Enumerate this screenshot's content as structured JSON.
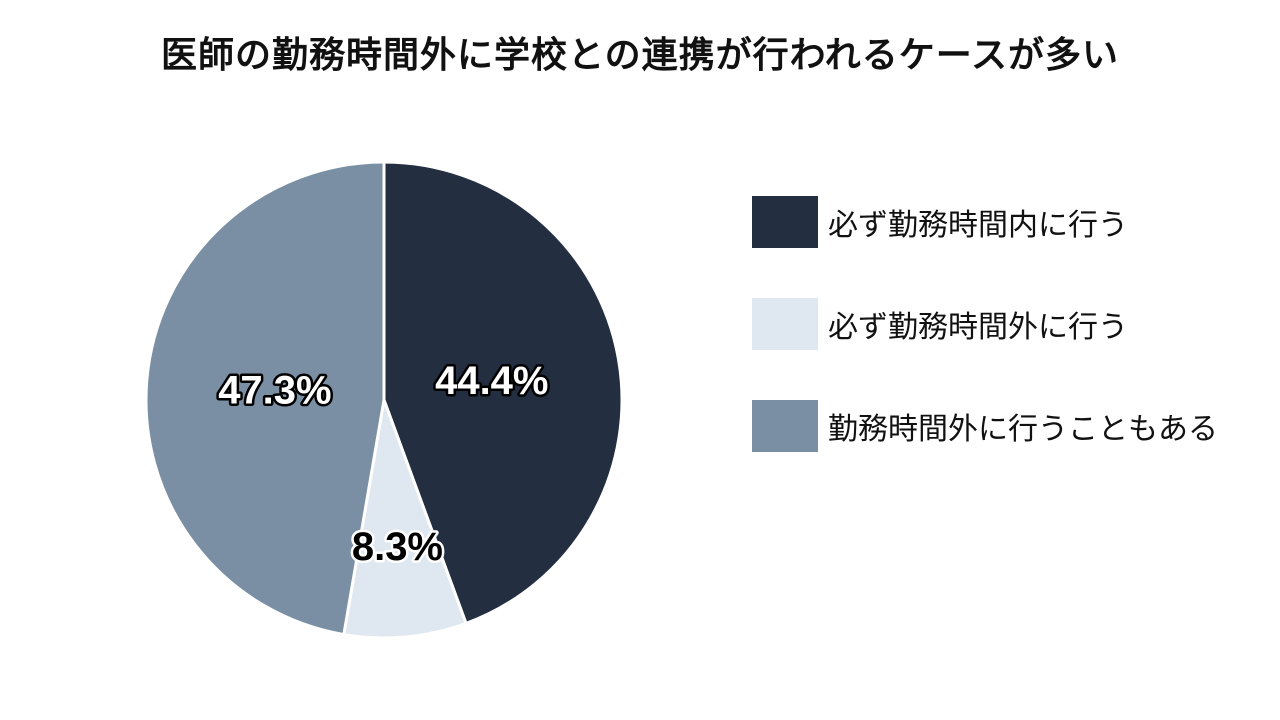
{
  "chart_data": {
    "type": "pie",
    "title": "医師の勤務時間外に学校との連携が行われるケースが多い",
    "categories": [
      "必ず勤務時間内に行う",
      "必ず勤務時間外に行う",
      "勤務時間外に行うこともある"
    ],
    "values": [
      44.4,
      8.3,
      47.3
    ],
    "labels": [
      "44.4%",
      "8.3%",
      "47.3%"
    ],
    "colors": [
      "#232e40",
      "#dfe8f1",
      "#7a8fa4"
    ],
    "label_style": [
      "light",
      "dark",
      "light"
    ],
    "legend_position": "right"
  }
}
